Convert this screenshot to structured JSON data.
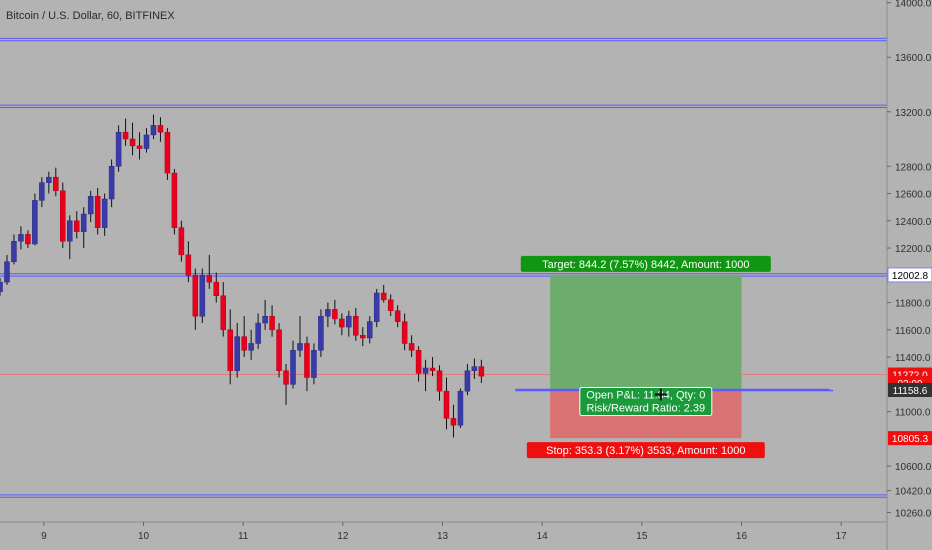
{
  "header": {
    "title": "Bitcoin / U.S. Dollar, 60, BITFINEX"
  },
  "colors": {
    "up": "#3a3aa8",
    "down": "#e8001c",
    "level_line": "#5b5bff",
    "price_line": "#ff5a5a",
    "target": "#6cac6c",
    "stop": "#d97373",
    "target_label": "#119611",
    "stop_label": "#ee1010"
  },
  "chart_data": {
    "type": "candlestick",
    "title": "Bitcoin / U.S. Dollar, 60, BITFINEX",
    "x_ticks": [
      "9",
      "10",
      "11",
      "12",
      "13",
      "14",
      "15",
      "16",
      "17"
    ],
    "y_ticks": [
      "14000.0",
      "13600.0",
      "13200.0",
      "12800.0",
      "12600.0",
      "12400.0",
      "12200.0",
      "11800.0",
      "11600.0",
      "11400.0",
      "11000.0",
      "10600.0",
      "10420.0",
      "10260.0"
    ],
    "ylim": [
      10190,
      14020
    ],
    "xlim": [
      8.56,
      17.46
    ],
    "horizontal_levels": [
      13730,
      13240,
      12003,
      10380
    ],
    "price_badges": [
      {
        "value": 12002.8,
        "text": "12002.8",
        "style": "white"
      },
      {
        "value": 11272.0,
        "text": "11272.0",
        "style": "red"
      },
      {
        "value": 11210.0,
        "text": "03:09",
        "style": "red"
      },
      {
        "value": 11158.6,
        "text": "11158.6",
        "style": "dark"
      },
      {
        "value": 10805.3,
        "text": "10805.3",
        "style": "red"
      }
    ],
    "current_price": 11272.0,
    "position": {
      "entry": 11158.6,
      "target": 12002.8,
      "stop": 10805.3,
      "x_start": 14.08,
      "x_end": 16.0,
      "line_x_start": 13.73,
      "line_x_end": 16.92,
      "entry_line_value": 11155.0,
      "target_label": "Target: 844.2 (7.57%) 8442, Amount: 1000",
      "stop_label": "Stop: 353.3 (3.17%) 3533, Amount: 1000",
      "pnl_label": "Open P&L: 11.34, Qty: 0",
      "rr_label": "Risk/Reward Ratio: 2.39"
    },
    "candles": [
      [
        8.56,
        11880,
        11980,
        11850,
        11950
      ],
      [
        8.63,
        11950,
        12150,
        11930,
        12100
      ],
      [
        8.7,
        12100,
        12300,
        12080,
        12250
      ],
      [
        8.77,
        12250,
        12360,
        12190,
        12300
      ],
      [
        8.84,
        12300,
        12330,
        12200,
        12230
      ],
      [
        8.91,
        12230,
        12600,
        12220,
        12550
      ],
      [
        8.98,
        12550,
        12720,
        12500,
        12680
      ],
      [
        9.05,
        12680,
        12760,
        12600,
        12720
      ],
      [
        9.12,
        12720,
        12790,
        12580,
        12620
      ],
      [
        9.19,
        12620,
        12680,
        12200,
        12250
      ],
      [
        9.26,
        12250,
        12440,
        12120,
        12400
      ],
      [
        9.33,
        12400,
        12470,
        12270,
        12320
      ],
      [
        9.4,
        12320,
        12500,
        12200,
        12450
      ],
      [
        9.47,
        12450,
        12620,
        12390,
        12580
      ],
      [
        9.54,
        12580,
        12640,
        12300,
        12350
      ],
      [
        9.61,
        12350,
        12600,
        12290,
        12560
      ],
      [
        9.68,
        12560,
        12850,
        12500,
        12800
      ],
      [
        9.75,
        12800,
        13100,
        12760,
        13050
      ],
      [
        9.82,
        13050,
        13150,
        12950,
        13000
      ],
      [
        9.89,
        13000,
        13120,
        12880,
        12950
      ],
      [
        9.96,
        12950,
        13050,
        12850,
        12930
      ],
      [
        10.03,
        12930,
        13080,
        12900,
        13030
      ],
      [
        10.1,
        13030,
        13180,
        13000,
        13100
      ],
      [
        10.17,
        13100,
        13160,
        12980,
        13050
      ],
      [
        10.24,
        13050,
        13080,
        12700,
        12750
      ],
      [
        10.31,
        12750,
        12780,
        12300,
        12350
      ],
      [
        10.38,
        12350,
        12400,
        12100,
        12150
      ],
      [
        10.45,
        12150,
        12250,
        11950,
        12000
      ],
      [
        10.52,
        12000,
        12050,
        11600,
        11700
      ],
      [
        10.59,
        11700,
        12050,
        11650,
        12000
      ],
      [
        10.66,
        12000,
        12150,
        11900,
        11950
      ],
      [
        10.73,
        11950,
        12020,
        11800,
        11850
      ],
      [
        10.8,
        11850,
        11950,
        11550,
        11600
      ],
      [
        10.87,
        11600,
        11750,
        11200,
        11300
      ],
      [
        10.94,
        11300,
        11650,
        11250,
        11550
      ],
      [
        11.01,
        11550,
        11700,
        11400,
        11450
      ],
      [
        11.08,
        11450,
        11600,
        11380,
        11500
      ],
      [
        11.15,
        11500,
        11720,
        11460,
        11650
      ],
      [
        11.22,
        11650,
        11820,
        11600,
        11700
      ],
      [
        11.29,
        11700,
        11780,
        11550,
        11600
      ],
      [
        11.36,
        11600,
        11650,
        11250,
        11300
      ],
      [
        11.43,
        11300,
        11350,
        11050,
        11200
      ],
      [
        11.5,
        11200,
        11520,
        11170,
        11450
      ],
      [
        11.57,
        11450,
        11700,
        11400,
        11500
      ],
      [
        11.64,
        11500,
        11550,
        11150,
        11250
      ],
      [
        11.71,
        11250,
        11500,
        11200,
        11450
      ],
      [
        11.78,
        11450,
        11750,
        11400,
        11700
      ],
      [
        11.85,
        11700,
        11800,
        11620,
        11750
      ],
      [
        11.92,
        11750,
        11820,
        11640,
        11680
      ],
      [
        11.99,
        11680,
        11720,
        11560,
        11620
      ],
      [
        12.06,
        11620,
        11740,
        11550,
        11700
      ],
      [
        12.13,
        11700,
        11760,
        11520,
        11560
      ],
      [
        12.2,
        11560,
        11620,
        11480,
        11540
      ],
      [
        12.27,
        11540,
        11700,
        11500,
        11660
      ],
      [
        12.34,
        11660,
        11900,
        11620,
        11870
      ],
      [
        12.41,
        11870,
        11930,
        11800,
        11820
      ],
      [
        12.48,
        11820,
        11860,
        11700,
        11740
      ],
      [
        12.55,
        11740,
        11780,
        11620,
        11660
      ],
      [
        12.62,
        11660,
        11720,
        11450,
        11500
      ],
      [
        12.69,
        11500,
        11560,
        11400,
        11450
      ],
      [
        12.76,
        11450,
        11480,
        11220,
        11280
      ],
      [
        12.83,
        11280,
        11380,
        11150,
        11320
      ],
      [
        12.9,
        11320,
        11400,
        11260,
        11300
      ],
      [
        12.97,
        11300,
        11340,
        11080,
        11150
      ],
      [
        13.04,
        11150,
        11250,
        10870,
        10950
      ],
      [
        13.11,
        10950,
        11050,
        10810,
        10900
      ],
      [
        13.18,
        10900,
        11170,
        10880,
        11150
      ],
      [
        13.25,
        11150,
        11350,
        11120,
        11300
      ],
      [
        13.32,
        11300,
        11390,
        11240,
        11330
      ],
      [
        13.39,
        11330,
        11380,
        11210,
        11260
      ]
    ]
  }
}
